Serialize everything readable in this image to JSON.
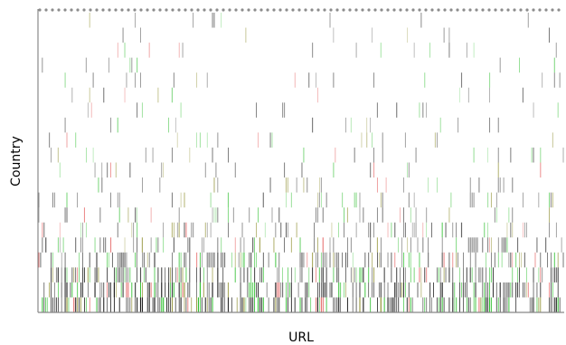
{
  "chart_data": {
    "type": "heatmap",
    "xlabel": "URL",
    "ylabel": "Country",
    "x_tick_labels": [],
    "y_tick_labels": [],
    "grid": false,
    "legend": "none",
    "colors": {
      "background": "#ffffff",
      "dark": "#1a1a1a",
      "green": "#2fbf2f",
      "red": "#e04848",
      "olive": "#8c8c2a",
      "axis": "#888888",
      "dot": "#8c8c8c"
    },
    "mark_color_weights": {
      "dark": 0.6,
      "green": 0.24,
      "olive": 0.1,
      "red": 0.06
    },
    "density_by_country": [
      0.05,
      0.05,
      0.06,
      0.06,
      0.07,
      0.07,
      0.08,
      0.08,
      0.09,
      0.1,
      0.12,
      0.14,
      0.18,
      0.24,
      0.3,
      0.38,
      0.5,
      0.65,
      0.8,
      0.95
    ],
    "column_count": 300,
    "column_density_range": [
      0.3,
      1.0
    ]
  }
}
